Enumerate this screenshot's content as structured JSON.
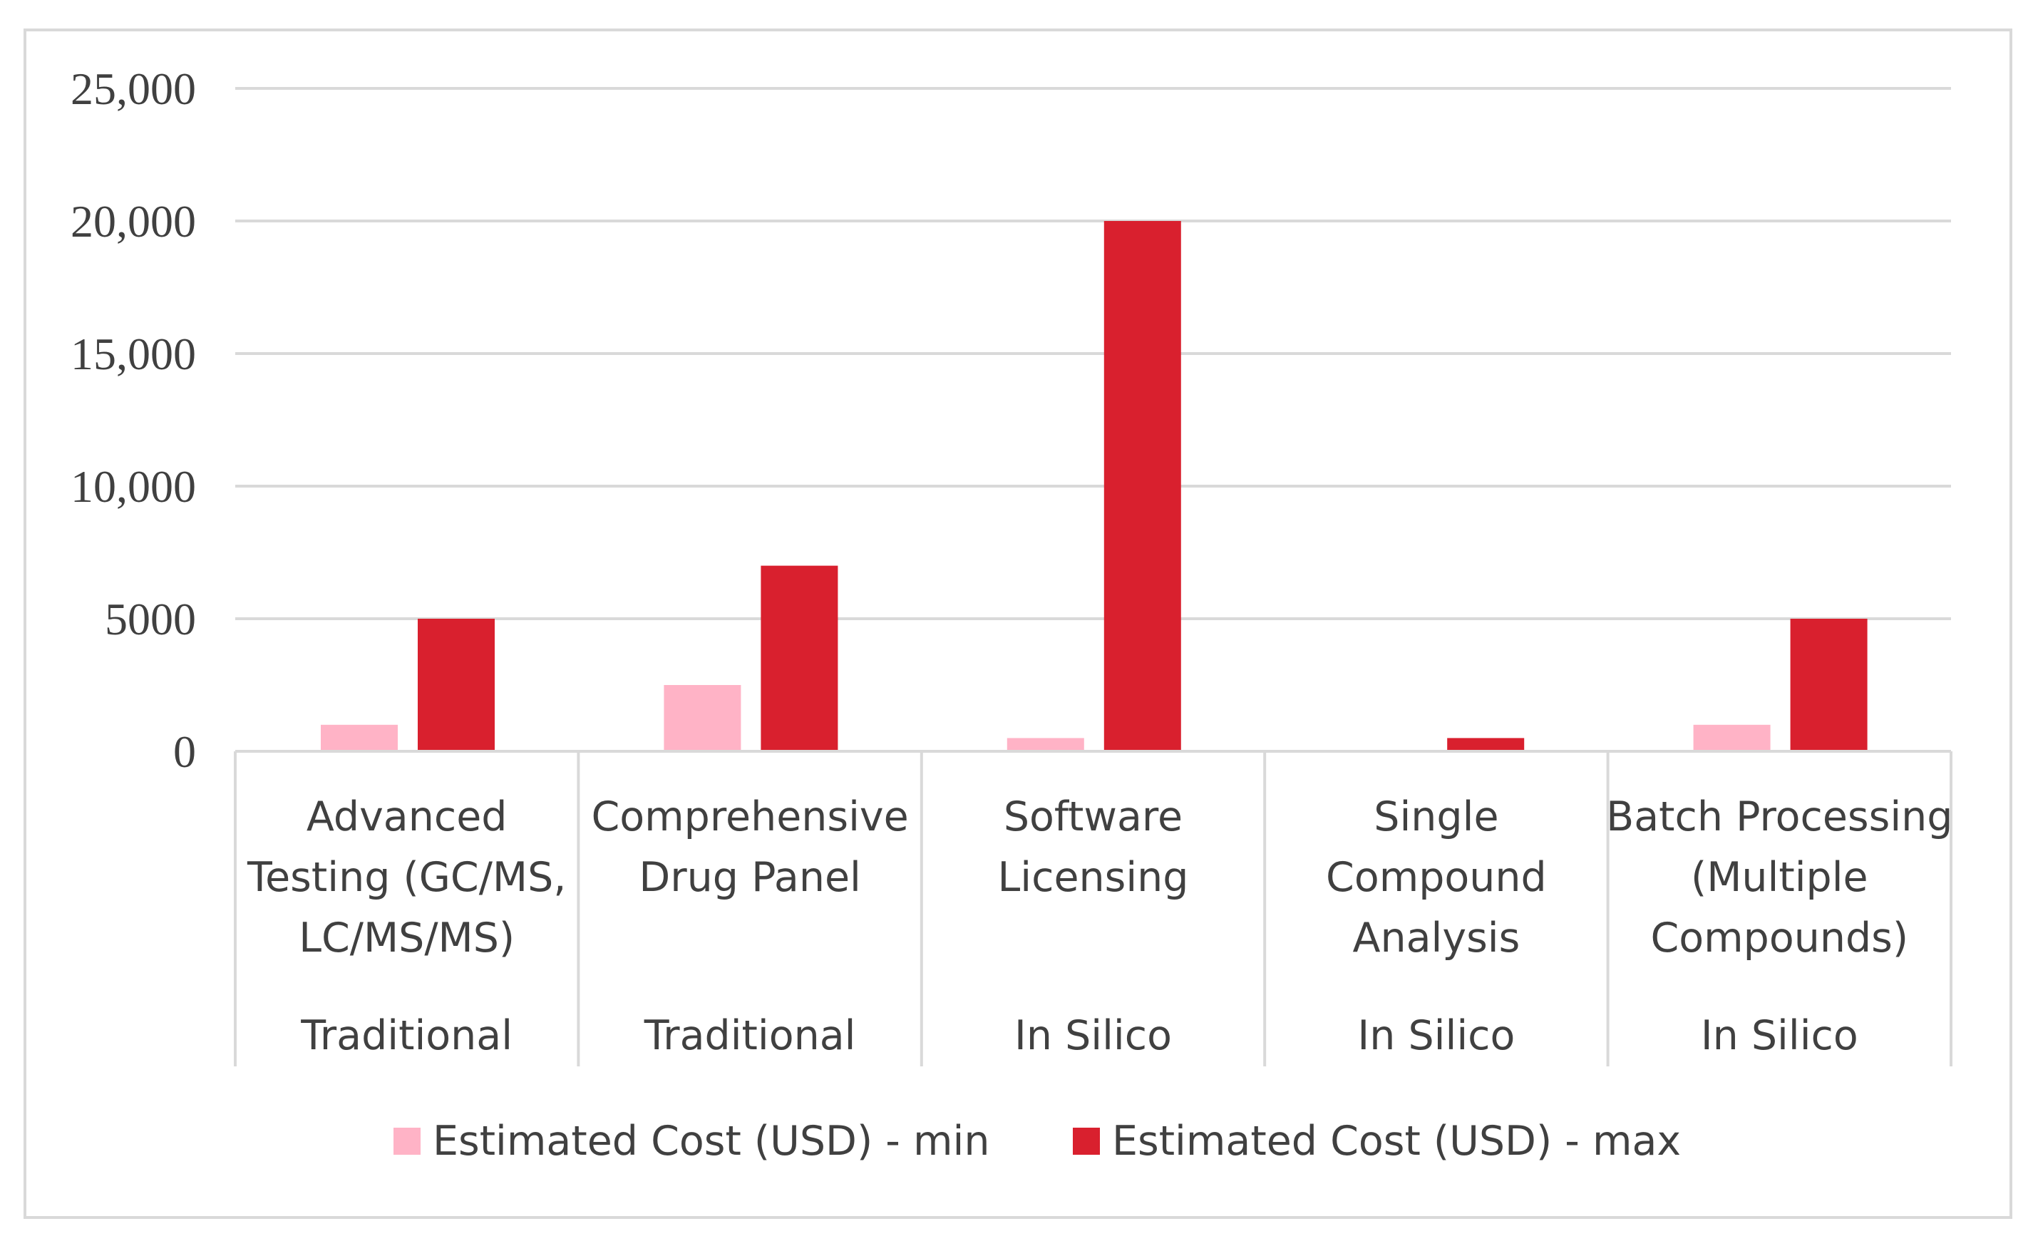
{
  "chart_data": {
    "type": "bar",
    "title": "",
    "xlabel": "",
    "ylabel": "",
    "ylim": [
      0,
      25000
    ],
    "y_ticks": [
      {
        "value": 0,
        "label": "0"
      },
      {
        "value": 5000,
        "label": "5000"
      },
      {
        "value": 10000,
        "label": "10,000"
      },
      {
        "value": 15000,
        "label": "15,000"
      },
      {
        "value": 20000,
        "label": "20,000"
      },
      {
        "value": 25000,
        "label": "25,000"
      }
    ],
    "grid": true,
    "legend_position": "bottom",
    "categories": [
      {
        "label_lines": [
          "Advanced",
          "Testing (GC/MS,",
          "LC/MS/MS)"
        ],
        "group": "Traditional"
      },
      {
        "label_lines": [
          "Comprehensive",
          "Drug Panel"
        ],
        "group": "Traditional"
      },
      {
        "label_lines": [
          "Software",
          "Licensing"
        ],
        "group": "In Silico"
      },
      {
        "label_lines": [
          "Single",
          "Compound",
          "Analysis"
        ],
        "group": "In Silico"
      },
      {
        "label_lines": [
          "Batch Processing",
          "(Multiple",
          "Compounds)"
        ],
        "group": "In Silico"
      }
    ],
    "series": [
      {
        "name": "Estimated Cost (USD) - min",
        "color": "#ffb3c6",
        "values": [
          1000,
          2500,
          500,
          50,
          1000
        ]
      },
      {
        "name": "Estimated Cost (USD) - max",
        "color": "#d9202e",
        "values": [
          5000,
          7000,
          20000,
          500,
          5000
        ]
      }
    ]
  }
}
